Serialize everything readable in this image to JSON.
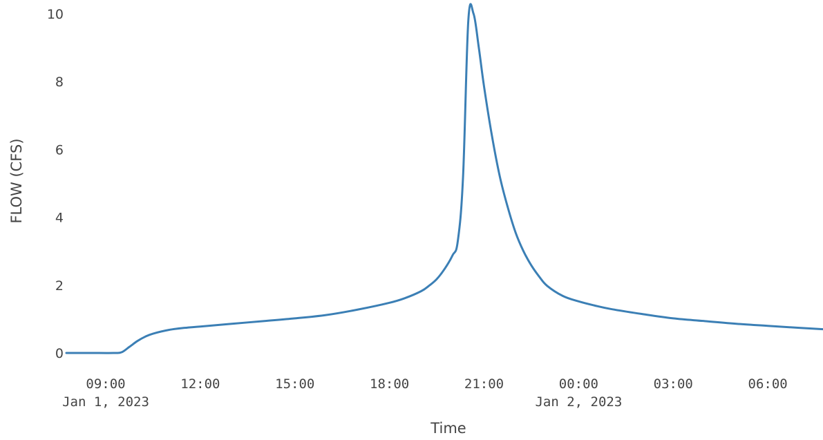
{
  "chart_data": {
    "type": "line",
    "title": "",
    "xlabel": "Time",
    "ylabel": "FLOW (CFS)",
    "ylim": [
      0,
      10
    ],
    "xlim": [
      "2023-01-01 07:45",
      "2023-01-02 07:45"
    ],
    "grid": false,
    "legend": "none",
    "x_ticks": [
      {
        "t": "2023-01-01 09:00",
        "label": "09:00",
        "sublabel": "Jan 1, 2023"
      },
      {
        "t": "2023-01-01 12:00",
        "label": "12:00",
        "sublabel": ""
      },
      {
        "t": "2023-01-01 15:00",
        "label": "15:00",
        "sublabel": ""
      },
      {
        "t": "2023-01-01 18:00",
        "label": "18:00",
        "sublabel": ""
      },
      {
        "t": "2023-01-01 21:00",
        "label": "21:00",
        "sublabel": ""
      },
      {
        "t": "2023-01-02 00:00",
        "label": "00:00",
        "sublabel": "Jan 2, 2023"
      },
      {
        "t": "2023-01-02 03:00",
        "label": "03:00",
        "sublabel": ""
      },
      {
        "t": "2023-01-02 06:00",
        "label": "06:00",
        "sublabel": ""
      }
    ],
    "y_ticks": [
      0,
      2,
      4,
      6,
      8,
      10
    ],
    "series": [
      {
        "color": "#3b7fb5",
        "x": [
          "2023-01-01 07:45",
          "2023-01-01 08:30",
          "2023-01-01 09:15",
          "2023-01-01 09:30",
          "2023-01-01 09:45",
          "2023-01-01 10:00",
          "2023-01-01 10:15",
          "2023-01-01 10:30",
          "2023-01-01 11:00",
          "2023-01-01 11:30",
          "2023-01-01 12:00",
          "2023-01-01 13:00",
          "2023-01-01 14:00",
          "2023-01-01 15:00",
          "2023-01-01 16:00",
          "2023-01-01 17:00",
          "2023-01-01 18:00",
          "2023-01-01 18:30",
          "2023-01-01 19:00",
          "2023-01-01 19:15",
          "2023-01-01 19:30",
          "2023-01-01 19:45",
          "2023-01-01 20:00",
          "2023-01-01 20:10",
          "2023-01-01 20:20",
          "2023-01-01 20:30",
          "2023-01-01 20:40",
          "2023-01-01 20:50",
          "2023-01-01 21:00",
          "2023-01-01 21:15",
          "2023-01-01 21:30",
          "2023-01-01 21:45",
          "2023-01-01 22:00",
          "2023-01-01 22:15",
          "2023-01-01 22:30",
          "2023-01-01 22:45",
          "2023-01-01 23:00",
          "2023-01-01 23:30",
          "2023-01-02 00:00",
          "2023-01-02 00:30",
          "2023-01-02 01:00",
          "2023-01-02 02:00",
          "2023-01-02 03:00",
          "2023-01-02 04:00",
          "2023-01-02 05:00",
          "2023-01-02 06:00",
          "2023-01-02 07:00",
          "2023-01-02 07:45"
        ],
        "y": [
          0.0,
          0.0,
          0.0,
          0.02,
          0.18,
          0.35,
          0.48,
          0.57,
          0.68,
          0.74,
          0.78,
          0.86,
          0.94,
          1.02,
          1.12,
          1.28,
          1.48,
          1.62,
          1.82,
          1.98,
          2.18,
          2.48,
          2.88,
          3.3,
          5.2,
          9.8,
          10.0,
          9.0,
          7.85,
          6.4,
          5.2,
          4.3,
          3.55,
          3.0,
          2.58,
          2.25,
          1.98,
          1.68,
          1.52,
          1.4,
          1.3,
          1.15,
          1.02,
          0.94,
          0.86,
          0.8,
          0.74,
          0.7
        ]
      }
    ]
  }
}
